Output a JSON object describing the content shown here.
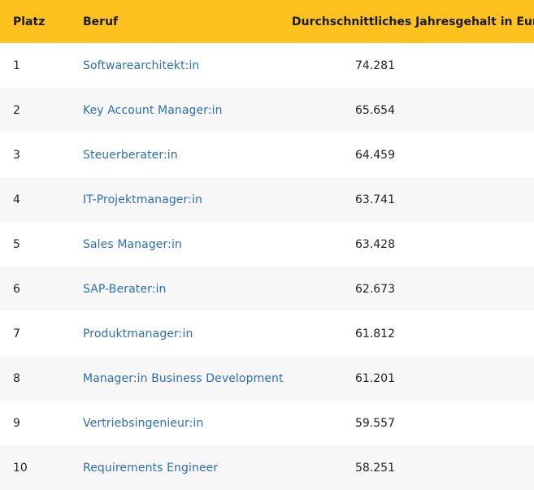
{
  "table": {
    "headers": {
      "rank": "Platz",
      "job": "Beruf",
      "salary": "Durchschnittliches Jahresgehalt in Euro"
    },
    "rows": [
      {
        "rank": "1",
        "job": "Softwarearchitekt:in",
        "salary": "74.281"
      },
      {
        "rank": "2",
        "job": "Key Account Manager:in",
        "salary": "65.654"
      },
      {
        "rank": "3",
        "job": "Steuerberater:in",
        "salary": "64.459"
      },
      {
        "rank": "4",
        "job": "IT-Projektmanager:in",
        "salary": "63.741"
      },
      {
        "rank": "5",
        "job": "Sales Manager:in",
        "salary": "63.428"
      },
      {
        "rank": "6",
        "job": "SAP-Berater:in",
        "salary": "62.673"
      },
      {
        "rank": "7",
        "job": "Produktmanager:in",
        "salary": "61.812"
      },
      {
        "rank": "8",
        "job": "Manager:in Business Development",
        "salary": "61.201"
      },
      {
        "rank": "9",
        "job": "Vertriebsingenieur:in",
        "salary": "59.557"
      },
      {
        "rank": "10",
        "job": "Requirements Engineer",
        "salary": "58.251"
      }
    ]
  },
  "colors": {
    "header_bg": "#fec21e",
    "link": "#2a6fb5",
    "row_alt_bg": "#f7f7f7"
  }
}
